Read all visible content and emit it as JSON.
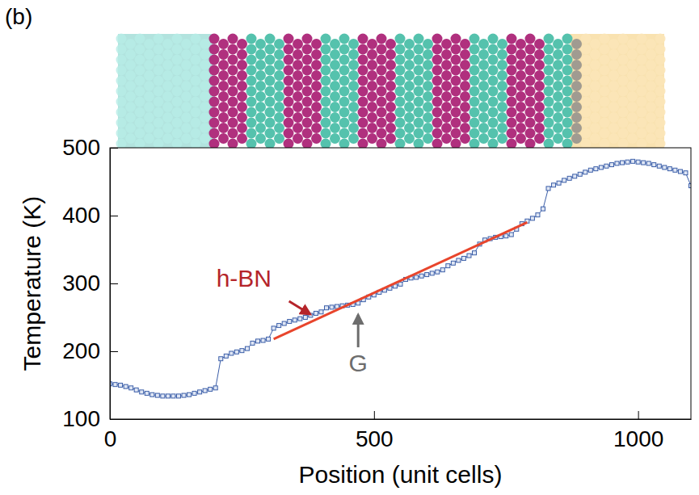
{
  "chart_data": {
    "type": "line",
    "panel_label": "(b)",
    "x_label": "Position (unit cells)",
    "y_label": "Temperature (K)",
    "xlim": [
      0,
      1100
    ],
    "xticks": [
      0,
      500,
      1000
    ],
    "ylim": [
      100,
      500
    ],
    "yticks": [
      100,
      200,
      300,
      400,
      500
    ],
    "grid": false,
    "series": [
      {
        "type": "line",
        "color": "#3b5ea8",
        "marker": "square",
        "line_style": "solid",
        "x": [
          0,
          10,
          20,
          30,
          40,
          50,
          60,
          70,
          80,
          90,
          100,
          110,
          120,
          130,
          140,
          150,
          160,
          170,
          180,
          190,
          200,
          210,
          220,
          230,
          240,
          250,
          260,
          270,
          280,
          290,
          300,
          310,
          320,
          330,
          340,
          350,
          360,
          370,
          380,
          390,
          400,
          410,
          420,
          430,
          440,
          450,
          460,
          470,
          480,
          490,
          500,
          510,
          520,
          530,
          540,
          550,
          560,
          570,
          580,
          590,
          600,
          610,
          620,
          630,
          640,
          650,
          660,
          670,
          680,
          690,
          700,
          710,
          720,
          730,
          740,
          750,
          760,
          770,
          780,
          790,
          800,
          810,
          820,
          830,
          840,
          850,
          860,
          870,
          880,
          890,
          900,
          910,
          920,
          930,
          940,
          950,
          960,
          970,
          980,
          990,
          1000,
          1010,
          1020,
          1030,
          1040,
          1050,
          1060,
          1070,
          1080,
          1090,
          1100
        ],
        "values": [
          152,
          151,
          150,
          148,
          146,
          143,
          140,
          138,
          136,
          135,
          134,
          134,
          134,
          134,
          135,
          136,
          138,
          140,
          142,
          144,
          146,
          189,
          193,
          197,
          199,
          201,
          204,
          212,
          215,
          216,
          218,
          234,
          238,
          241,
          244,
          246,
          248,
          250,
          253,
          256,
          258,
          264,
          265,
          266,
          267,
          268,
          269,
          271,
          276,
          280,
          283,
          287,
          290,
          293,
          296,
          299,
          306,
          308,
          309,
          311,
          313,
          315,
          317,
          320,
          326,
          330,
          334,
          337,
          341,
          345,
          358,
          364,
          366,
          368,
          369,
          370,
          372,
          380,
          388,
          392,
          396,
          401,
          410,
          440,
          445,
          448,
          452,
          455,
          458,
          461,
          464,
          467,
          469,
          471,
          473,
          475,
          477,
          478,
          479,
          480,
          479,
          478,
          477,
          475,
          473,
          471,
          469,
          467,
          465,
          463,
          444
        ]
      },
      {
        "type": "line",
        "color": "#e8452c",
        "marker": "none",
        "line_style": "solid",
        "x": [
          310,
          790
        ],
        "values": [
          218,
          390
        ]
      }
    ],
    "annotations": [
      {
        "text": "h-BN",
        "color": "#b5242a",
        "x": 385,
        "y": 250
      },
      {
        "text": "G",
        "color": "#6d6d6d",
        "x": 470,
        "y": 263
      }
    ]
  }
}
